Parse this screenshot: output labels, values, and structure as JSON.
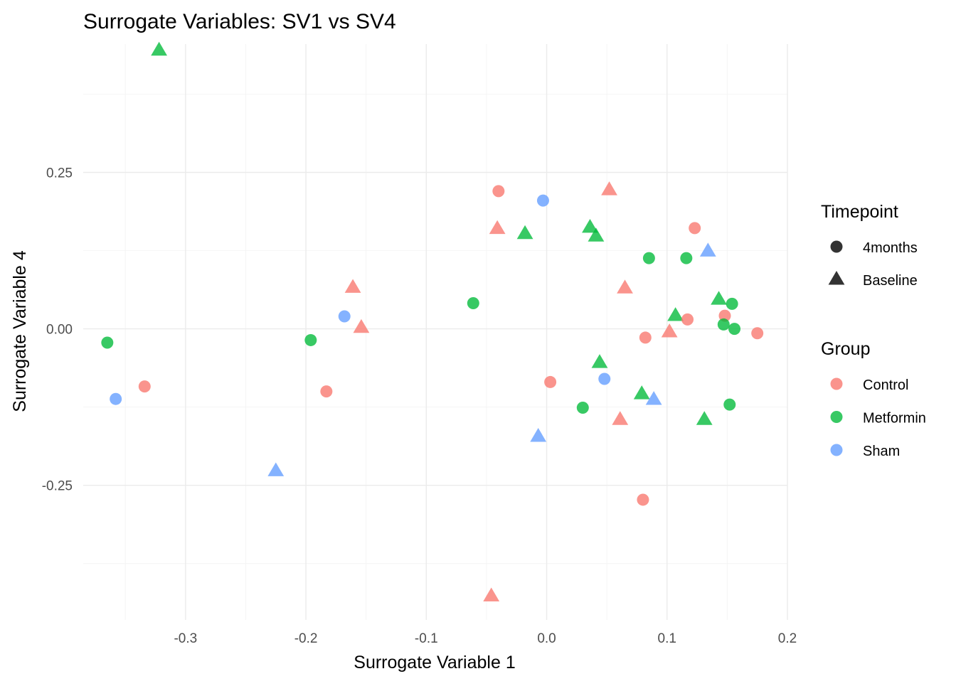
{
  "chart_data": {
    "type": "scatter",
    "title": "Surrogate Variables: SV1 vs SV4",
    "xlabel": "Surrogate Variable 1",
    "ylabel": "Surrogate Variable 4",
    "xlim": [
      -0.385,
      0.2
    ],
    "ylim": [
      -0.465,
      0.455
    ],
    "x_ticks": [
      -0.3,
      -0.2,
      -0.1,
      0.0,
      0.1,
      0.2
    ],
    "x_tick_labels": [
      "-0.3",
      "-0.2",
      "-0.1",
      "0.0",
      "0.1",
      "0.2"
    ],
    "y_ticks": [
      -0.25,
      0.0,
      0.25
    ],
    "y_tick_labels": [
      "-0.25",
      "0.00",
      "0.25"
    ],
    "grid": true,
    "legend_position": "right",
    "shape_legend": {
      "title": "Timepoint",
      "items": [
        {
          "label": "4months",
          "shape": "circle"
        },
        {
          "label": "Baseline",
          "shape": "triangle"
        }
      ]
    },
    "color_legend": {
      "title": "Group",
      "items": [
        {
          "label": "Control",
          "color": "#F8766D"
        },
        {
          "label": "Metformin",
          "color": "#00BA38"
        },
        {
          "label": "Sham",
          "color": "#619CFF"
        }
      ]
    },
    "points": [
      {
        "x": -0.322,
        "y": 0.445,
        "group": "Metformin",
        "timepoint": "Baseline"
      },
      {
        "x": -0.04,
        "y": 0.22,
        "group": "Control",
        "timepoint": "4months"
      },
      {
        "x": -0.003,
        "y": 0.205,
        "group": "Sham",
        "timepoint": "4months"
      },
      {
        "x": 0.052,
        "y": 0.222,
        "group": "Control",
        "timepoint": "Baseline"
      },
      {
        "x": -0.041,
        "y": 0.16,
        "group": "Control",
        "timepoint": "Baseline"
      },
      {
        "x": -0.018,
        "y": 0.152,
        "group": "Metformin",
        "timepoint": "Baseline"
      },
      {
        "x": 0.036,
        "y": 0.162,
        "group": "Metformin",
        "timepoint": "Baseline"
      },
      {
        "x": 0.041,
        "y": 0.148,
        "group": "Metformin",
        "timepoint": "Baseline"
      },
      {
        "x": 0.123,
        "y": 0.161,
        "group": "Control",
        "timepoint": "4months"
      },
      {
        "x": 0.085,
        "y": 0.113,
        "group": "Metformin",
        "timepoint": "4months"
      },
      {
        "x": 0.116,
        "y": 0.113,
        "group": "Metformin",
        "timepoint": "4months"
      },
      {
        "x": 0.134,
        "y": 0.124,
        "group": "Sham",
        "timepoint": "Baseline"
      },
      {
        "x": -0.161,
        "y": 0.066,
        "group": "Control",
        "timepoint": "Baseline"
      },
      {
        "x": 0.065,
        "y": 0.065,
        "group": "Control",
        "timepoint": "Baseline"
      },
      {
        "x": -0.061,
        "y": 0.041,
        "group": "Metformin",
        "timepoint": "4months"
      },
      {
        "x": 0.143,
        "y": 0.047,
        "group": "Metformin",
        "timepoint": "Baseline"
      },
      {
        "x": 0.154,
        "y": 0.04,
        "group": "Metformin",
        "timepoint": "4months"
      },
      {
        "x": -0.168,
        "y": 0.02,
        "group": "Sham",
        "timepoint": "4months"
      },
      {
        "x": -0.154,
        "y": 0.002,
        "group": "Control",
        "timepoint": "Baseline"
      },
      {
        "x": 0.107,
        "y": 0.021,
        "group": "Metformin",
        "timepoint": "Baseline"
      },
      {
        "x": 0.117,
        "y": 0.015,
        "group": "Control",
        "timepoint": "4months"
      },
      {
        "x": 0.148,
        "y": 0.021,
        "group": "Control",
        "timepoint": "4months"
      },
      {
        "x": 0.147,
        "y": 0.007,
        "group": "Metformin",
        "timepoint": "4months"
      },
      {
        "x": 0.156,
        "y": 0.0,
        "group": "Metformin",
        "timepoint": "4months"
      },
      {
        "x": 0.175,
        "y": -0.007,
        "group": "Control",
        "timepoint": "4months"
      },
      {
        "x": 0.082,
        "y": -0.014,
        "group": "Control",
        "timepoint": "4months"
      },
      {
        "x": 0.102,
        "y": -0.005,
        "group": "Control",
        "timepoint": "Baseline"
      },
      {
        "x": -0.365,
        "y": -0.022,
        "group": "Metformin",
        "timepoint": "4months"
      },
      {
        "x": -0.196,
        "y": -0.018,
        "group": "Metformin",
        "timepoint": "4months"
      },
      {
        "x": 0.044,
        "y": -0.054,
        "group": "Metformin",
        "timepoint": "Baseline"
      },
      {
        "x": 0.048,
        "y": -0.08,
        "group": "Sham",
        "timepoint": "4months"
      },
      {
        "x": 0.003,
        "y": -0.085,
        "group": "Control",
        "timepoint": "4months"
      },
      {
        "x": -0.334,
        "y": -0.092,
        "group": "Control",
        "timepoint": "4months"
      },
      {
        "x": -0.183,
        "y": -0.1,
        "group": "Control",
        "timepoint": "4months"
      },
      {
        "x": -0.358,
        "y": -0.112,
        "group": "Sham",
        "timepoint": "4months"
      },
      {
        "x": 0.079,
        "y": -0.104,
        "group": "Metformin",
        "timepoint": "Baseline"
      },
      {
        "x": 0.089,
        "y": -0.113,
        "group": "Sham",
        "timepoint": "Baseline"
      },
      {
        "x": 0.03,
        "y": -0.126,
        "group": "Metformin",
        "timepoint": "4months"
      },
      {
        "x": 0.152,
        "y": -0.121,
        "group": "Metformin",
        "timepoint": "4months"
      },
      {
        "x": 0.061,
        "y": -0.145,
        "group": "Control",
        "timepoint": "Baseline"
      },
      {
        "x": 0.131,
        "y": -0.145,
        "group": "Metformin",
        "timepoint": "Baseline"
      },
      {
        "x": -0.007,
        "y": -0.172,
        "group": "Sham",
        "timepoint": "Baseline"
      },
      {
        "x": -0.225,
        "y": -0.227,
        "group": "Sham",
        "timepoint": "Baseline"
      },
      {
        "x": 0.08,
        "y": -0.273,
        "group": "Control",
        "timepoint": "4months"
      },
      {
        "x": -0.046,
        "y": -0.427,
        "group": "Control",
        "timepoint": "Baseline"
      }
    ]
  }
}
